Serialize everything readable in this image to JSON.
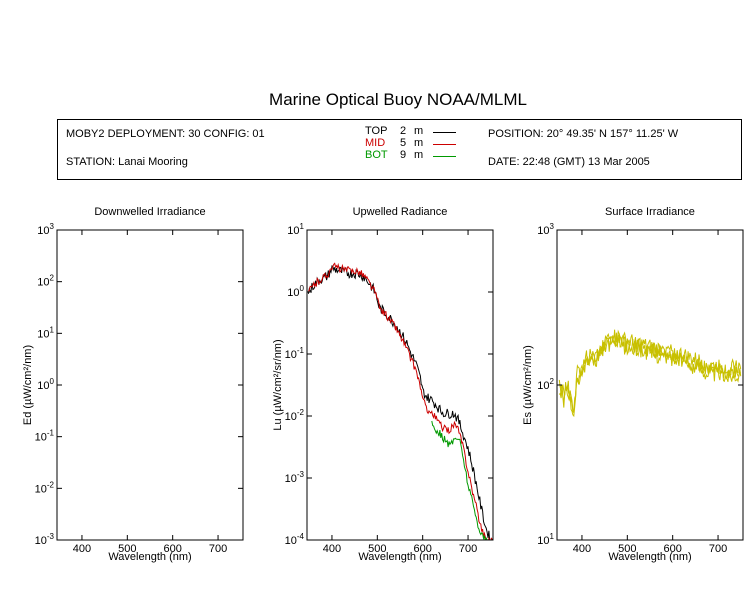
{
  "title": "Marine Optical Buoy NOAA/MLML",
  "info": {
    "deployment": "MOBY2 DEPLOYMENT: 30 CONFIG: 01",
    "station": "STATION: Lanai Mooring",
    "position": "POSITION: 20° 49.35' N   157° 11.25' W",
    "date": "DATE: 22:48 (GMT) 13 Mar 2005",
    "legend": [
      {
        "name": "TOP",
        "depth": "2",
        "unit": "m",
        "color": "#000000"
      },
      {
        "name": "MID",
        "depth": "5",
        "unit": "m",
        "color": "#cc0000"
      },
      {
        "name": "BOT",
        "depth": "9",
        "unit": "m",
        "color": "#009900"
      }
    ]
  },
  "chart_data": [
    {
      "type": "line",
      "title": "Downwelled Irradiance",
      "xlabel": "Wavelength (nm)",
      "ylabel": "Ed  (µW/cm²/nm)",
      "ylog": true,
      "xlim": [
        345,
        755
      ],
      "ylim": [
        0.001,
        1000
      ],
      "xticks": [
        400,
        500,
        600,
        700
      ],
      "yticks": [
        {
          "base": "10",
          "exp": "-3"
        },
        {
          "base": "10",
          "exp": "-2"
        },
        {
          "base": "10",
          "exp": "-1"
        },
        {
          "base": "10",
          "exp": "0"
        },
        {
          "base": "10",
          "exp": "1"
        },
        {
          "base": "10",
          "exp": "2"
        },
        {
          "base": "10",
          "exp": "3"
        }
      ],
      "series": []
    },
    {
      "type": "line",
      "title": "Upwelled Radiance",
      "xlabel": "Wavelength (nm)",
      "ylabel": "Lu  (µW/cm²/sr/nm)",
      "ylog": true,
      "xlim": [
        345,
        755
      ],
      "ylim": [
        0.0001,
        10
      ],
      "xticks": [
        400,
        500,
        600,
        700
      ],
      "yticks": [
        {
          "base": "10",
          "exp": "-4"
        },
        {
          "base": "10",
          "exp": "-3"
        },
        {
          "base": "10",
          "exp": "-2"
        },
        {
          "base": "10",
          "exp": "-1"
        },
        {
          "base": "10",
          "exp": "0"
        },
        {
          "base": "10",
          "exp": "1"
        }
      ],
      "series": [
        {
          "name": "TOP",
          "color": "#000000",
          "jitter": 0.08,
          "x": [
            348,
            360,
            375,
            390,
            400,
            410,
            425,
            440,
            455,
            465,
            475,
            485,
            495,
            505,
            515,
            525,
            540,
            555,
            565,
            575,
            585,
            595,
            600,
            610,
            620,
            630,
            640,
            650,
            660,
            670,
            680,
            690,
            700,
            710,
            720,
            730,
            740,
            750,
            753
          ],
          "y": [
            1.0,
            1.3,
            1.6,
            1.8,
            2.4,
            2.3,
            2.1,
            2.0,
            2.0,
            1.9,
            1.6,
            1.3,
            1.0,
            0.55,
            0.48,
            0.4,
            0.3,
            0.2,
            0.15,
            0.1,
            0.07,
            0.04,
            0.025,
            0.02,
            0.018,
            0.015,
            0.012,
            0.011,
            0.011,
            0.011,
            0.008,
            0.005,
            0.003,
            0.0015,
            0.0007,
            0.0003,
            0.00015,
            0.0001,
            0.0001
          ]
        },
        {
          "name": "MID",
          "color": "#cc0000",
          "jitter": 0.06,
          "x": [
            348,
            360,
            375,
            390,
            400,
            410,
            425,
            440,
            455,
            465,
            475,
            485,
            495,
            505,
            515,
            525,
            540,
            555,
            565,
            575,
            585,
            595,
            600,
            610,
            620,
            630,
            640,
            650,
            660,
            670,
            680,
            690,
            700,
            710,
            720,
            730,
            740,
            750,
            753
          ],
          "y": [
            1.0,
            1.3,
            1.6,
            1.9,
            2.6,
            2.5,
            2.3,
            2.2,
            2.2,
            2.0,
            1.7,
            1.3,
            1.0,
            0.55,
            0.46,
            0.38,
            0.27,
            0.17,
            0.12,
            0.08,
            0.055,
            0.03,
            0.018,
            0.013,
            0.011,
            0.009,
            0.007,
            0.006,
            0.006,
            0.0075,
            0.0055,
            0.003,
            0.0013,
            0.0006,
            0.0003,
            0.00015,
            0.0001,
            0.0001,
            0.0001
          ]
        },
        {
          "name": "BOT",
          "color": "#009900",
          "jitter": 0.06,
          "x": [
            620,
            630,
            640,
            650,
            660,
            670,
            680,
            690,
            700,
            710,
            720,
            730,
            740,
            745
          ],
          "y": [
            0.0075,
            0.006,
            0.005,
            0.004,
            0.0033,
            0.0043,
            0.0045,
            0.002,
            0.0008,
            0.0004,
            0.0002,
            0.00012,
            0.0001,
            0.0001
          ]
        }
      ]
    },
    {
      "type": "line",
      "title": "Surface Irradiance",
      "xlabel": "Wavelength (nm)",
      "ylabel": "Es  (µW/cm²/nm)",
      "ylog": true,
      "xlim": [
        345,
        755
      ],
      "ylim": [
        10,
        1000
      ],
      "xticks": [
        400,
        500,
        600,
        700
      ],
      "yticks": [
        {
          "base": "10",
          "exp": "1"
        },
        {
          "base": "10",
          "exp": "2"
        },
        {
          "base": "10",
          "exp": "3"
        }
      ],
      "series": [
        {
          "name": "Es 1",
          "color": "#c8c000",
          "jitter": 0.05,
          "x": [
            350,
            360,
            370,
            380,
            390,
            400,
            410,
            420,
            430,
            440,
            450,
            460,
            470,
            480,
            490,
            500,
            520,
            540,
            560,
            580,
            600,
            620,
            640,
            660,
            680,
            700,
            720,
            740,
            750
          ],
          "y": [
            100,
            85,
            95,
            68,
            120,
            125,
            150,
            150,
            145,
            160,
            185,
            190,
            195,
            195,
            185,
            180,
            180,
            170,
            165,
            160,
            155,
            150,
            140,
            135,
            125,
            125,
            120,
            125,
            120
          ]
        },
        {
          "name": "Es 2",
          "color": "#c8c000",
          "jitter": 0.05,
          "x": [
            350,
            360,
            370,
            380,
            390,
            400,
            410,
            420,
            430,
            440,
            450,
            460,
            470,
            480,
            490,
            500,
            520,
            540,
            560,
            580,
            600,
            620,
            640,
            660,
            680,
            700,
            720,
            740,
            750
          ],
          "y": [
            100,
            90,
            100,
            65,
            110,
            128,
            155,
            155,
            150,
            165,
            192,
            198,
            205,
            205,
            195,
            190,
            188,
            178,
            172,
            168,
            162,
            157,
            148,
            142,
            132,
            132,
            127,
            132,
            127
          ]
        },
        {
          "name": "Es 3",
          "color": "#c8c000",
          "jitter": 0.05,
          "x": [
            350,
            360,
            370,
            380,
            390,
            400,
            410,
            420,
            430,
            440,
            450,
            460,
            470,
            480,
            490,
            500,
            520,
            540,
            560,
            580,
            600,
            620,
            640,
            660,
            680,
            700,
            720,
            740,
            750
          ],
          "y": [
            95,
            80,
            90,
            60,
            105,
            120,
            145,
            145,
            140,
            155,
            178,
            182,
            186,
            186,
            177,
            172,
            172,
            162,
            157,
            152,
            148,
            143,
            133,
            128,
            118,
            118,
            114,
            118,
            114
          ]
        }
      ]
    }
  ]
}
